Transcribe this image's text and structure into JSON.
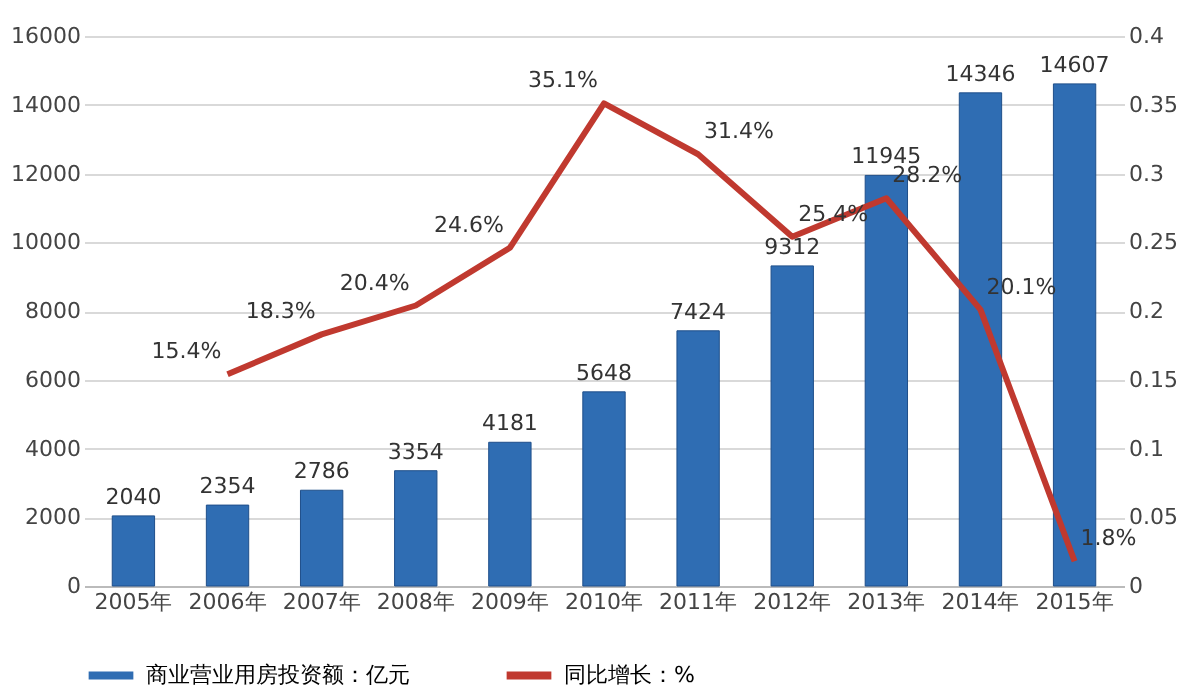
{
  "chart_data": {
    "type": "bar",
    "categories": [
      "2005年",
      "2006年",
      "2007年",
      "2008年",
      "2009年",
      "2010年",
      "2011年",
      "2012年",
      "2013年",
      "2014年",
      "2015年"
    ],
    "series": [
      {
        "name": "商业营业用房投资额：亿元",
        "color": "#2f6db3",
        "values": [
          2040,
          2354,
          2786,
          3354,
          4181,
          5648,
          7424,
          9312,
          11945,
          14346,
          14607
        ],
        "data_labels": true
      },
      {
        "name": "同比增长：%",
        "type": "line",
        "axis": "y2",
        "color": "#c0392f",
        "values": [
          null,
          0.154,
          0.183,
          0.204,
          0.246,
          0.351,
          0.314,
          0.254,
          0.282,
          0.201,
          0.018
        ],
        "value_labels": [
          null,
          "15.4%",
          "18.3%",
          "20.4%",
          "24.6%",
          "35.1%",
          "31.4%",
          "25.4%",
          "28.2%",
          "20.1%",
          "1.8%"
        ]
      }
    ],
    "ylim": [
      0,
      16000
    ],
    "yticks": [
      0,
      2000,
      4000,
      6000,
      8000,
      10000,
      12000,
      14000,
      16000
    ],
    "y2lim": [
      0,
      0.4
    ],
    "y2ticks": [
      0,
      0.05,
      0.1,
      0.15,
      0.2,
      0.25,
      0.3,
      0.35,
      0.4
    ],
    "grid": "y",
    "legend": "bottom",
    "marker": "none",
    "line_style": "solid"
  }
}
